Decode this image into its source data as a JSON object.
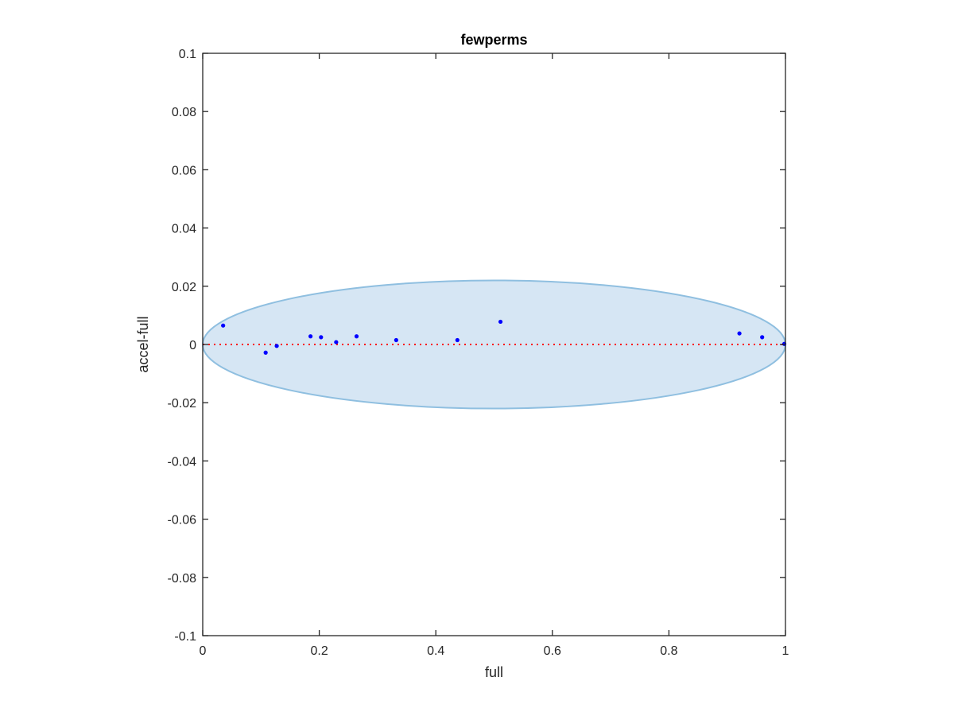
{
  "chart_data": {
    "type": "scatter",
    "title": "fewperms",
    "xlabel": "full",
    "ylabel": "accel-full",
    "xlim": [
      0,
      1
    ],
    "ylim": [
      -0.1,
      0.1
    ],
    "xticks": [
      0,
      0.2,
      0.4,
      0.6,
      0.8,
      1
    ],
    "xtick_labels": [
      "0",
      "0.2",
      "0.4",
      "0.6",
      "0.8",
      "1"
    ],
    "yticks": [
      -0.1,
      -0.08,
      -0.06,
      -0.04,
      -0.02,
      0,
      0.02,
      0.04,
      0.06,
      0.08,
      0.1
    ],
    "ytick_labels": [
      "-0.1",
      "-0.08",
      "-0.06",
      "-0.04",
      "-0.02",
      "0",
      "0.02",
      "0.04",
      "0.06",
      "0.08",
      "0.1"
    ],
    "grid": false,
    "series": [
      {
        "color": "#0000ff",
        "points": [
          {
            "x": 0.035,
            "y": 0.0065
          },
          {
            "x": 0.108,
            "y": -0.0028
          },
          {
            "x": 0.127,
            "y": -0.0005
          },
          {
            "x": 0.185,
            "y": 0.0028
          },
          {
            "x": 0.203,
            "y": 0.0025
          },
          {
            "x": 0.229,
            "y": 0.0008
          },
          {
            "x": 0.264,
            "y": 0.0028
          },
          {
            "x": 0.332,
            "y": 0.0015
          },
          {
            "x": 0.437,
            "y": 0.0015
          },
          {
            "x": 0.511,
            "y": 0.0078
          },
          {
            "x": 0.921,
            "y": 0.0038
          },
          {
            "x": 0.96,
            "y": 0.0025
          },
          {
            "x": 0.998,
            "y": 0.0002
          }
        ]
      }
    ],
    "reference_line": {
      "y": 0,
      "color": "#ff0000",
      "style": "dotted"
    },
    "ellipse": {
      "cx": 0.5,
      "cy": 0,
      "rx": 0.5,
      "ry": 0.022,
      "fill": "#d6e6f4",
      "stroke": "#8fbfe0"
    }
  }
}
